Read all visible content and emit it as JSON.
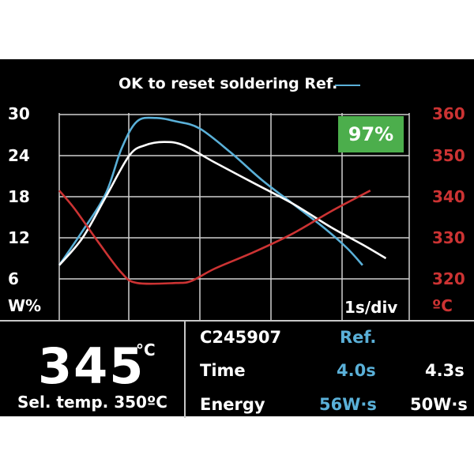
{
  "legend": {
    "text": "OK to reset soldering Ref.",
    "line_color": "#5ab0d8"
  },
  "badge": {
    "text": "97%",
    "color": "#4cae4c"
  },
  "axis": {
    "left_ticks": [
      "30",
      "24",
      "18",
      "12",
      "6"
    ],
    "right_ticks": [
      "360",
      "350",
      "340",
      "330",
      "320"
    ],
    "left_unit": "W%",
    "right_unit": "ºC",
    "time_scale": "1s/div",
    "left_color": "#ffffff",
    "right_color": "#cc3333"
  },
  "chart_data": {
    "type": "line",
    "x_unit": "s",
    "x_range": [
      0,
      4.5
    ],
    "left_axis": {
      "label": "W%",
      "range": [
        6,
        30
      ]
    },
    "right_axis": {
      "label": "ºC",
      "range": [
        320,
        360
      ]
    },
    "grid": true,
    "series": [
      {
        "name": "Ref.",
        "color": "#5ab0d8",
        "axis": "left",
        "x": [
          0.0,
          0.3,
          0.6,
          0.8,
          1.0,
          1.25,
          1.5,
          1.8,
          2.2,
          2.6,
          3.0,
          3.4,
          3.7,
          3.9
        ],
        "y": [
          8,
          13,
          18.5,
          25,
          29,
          29.5,
          29,
          28,
          24.5,
          20.5,
          17,
          13.5,
          10.5,
          8
        ]
      },
      {
        "color": "#ffffff",
        "axis": "left",
        "x": [
          0.0,
          0.3,
          0.6,
          0.9,
          1.1,
          1.35,
          1.6,
          2.0,
          2.5,
          3.0,
          3.5,
          3.9,
          4.2
        ],
        "y": [
          8,
          12,
          18,
          24,
          25.5,
          26,
          25.5,
          23,
          20,
          17,
          13.5,
          11,
          9
        ]
      },
      {
        "color": "#cc3333",
        "axis": "right",
        "x": [
          0.0,
          0.2,
          0.5,
          0.8,
          1.0,
          1.5,
          1.7,
          2.0,
          2.5,
          3.0,
          3.5,
          4.0
        ],
        "y": [
          341.5,
          337,
          329,
          321.5,
          319,
          319,
          319.5,
          322.5,
          326.5,
          331,
          336.5,
          341.5
        ]
      }
    ]
  },
  "readout": {
    "current_temp": "345",
    "temp_unit": "°C",
    "selected_temp": "Sel. temp. 350ºC",
    "tip_id": "C245907",
    "ref_label": "Ref.",
    "rows": [
      {
        "label": "Time",
        "ref_value": "4.0s",
        "value": "4.3s"
      },
      {
        "label": "Energy",
        "ref_value": "56W·s",
        "value": "50W·s"
      }
    ]
  }
}
